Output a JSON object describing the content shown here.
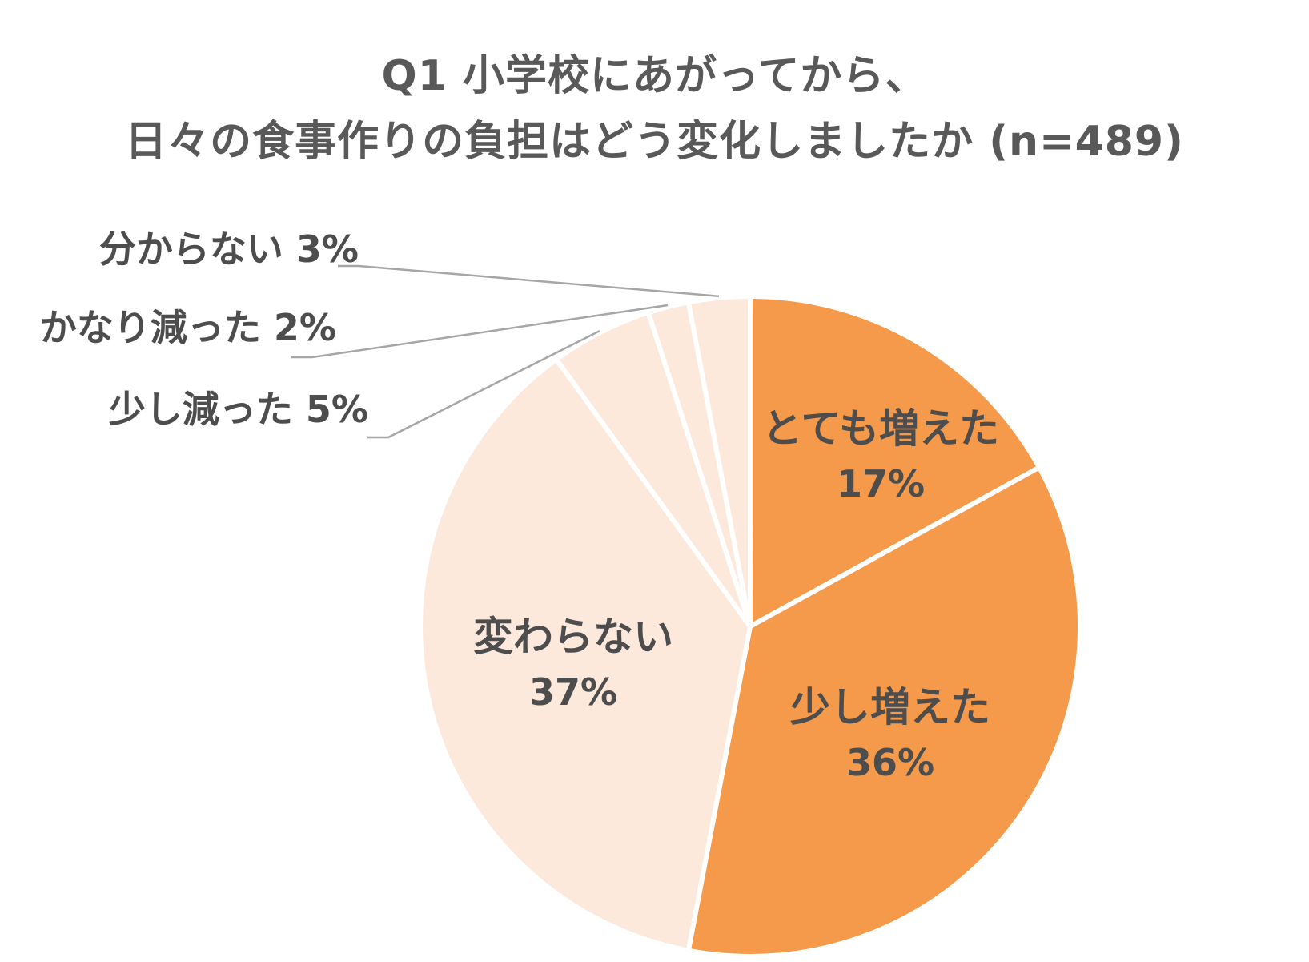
{
  "chart_data": {
    "type": "pie",
    "title_lines": [
      "Q1 小学校にあがってから、",
      "日々の食事作りの負担はどう変化しましたか (n=489)"
    ],
    "slices": [
      {
        "label": "とても増えた",
        "value": 17,
        "value_label": "17%",
        "color": "#F5994A"
      },
      {
        "label": "少し増えた",
        "value": 36,
        "value_label": "36%",
        "color": "#F5994A"
      },
      {
        "label": "変わらない",
        "value": 37,
        "value_label": "37%",
        "color": "#FCE9DC"
      },
      {
        "label": "少し減った",
        "value": 5,
        "value_label": "5%",
        "color": "#FCE9DC"
      },
      {
        "label": "かなり減った",
        "value": 2,
        "value_label": "2%",
        "color": "#FCE9DC"
      },
      {
        "label": "分からない",
        "value": 3,
        "value_label": "3%",
        "color": "#FCE9DC"
      }
    ],
    "start": "12 o'clock",
    "direction": "clockwise",
    "legend": "none",
    "border_color": "#ffffff",
    "leader_line_color": "#A6A6A6"
  }
}
